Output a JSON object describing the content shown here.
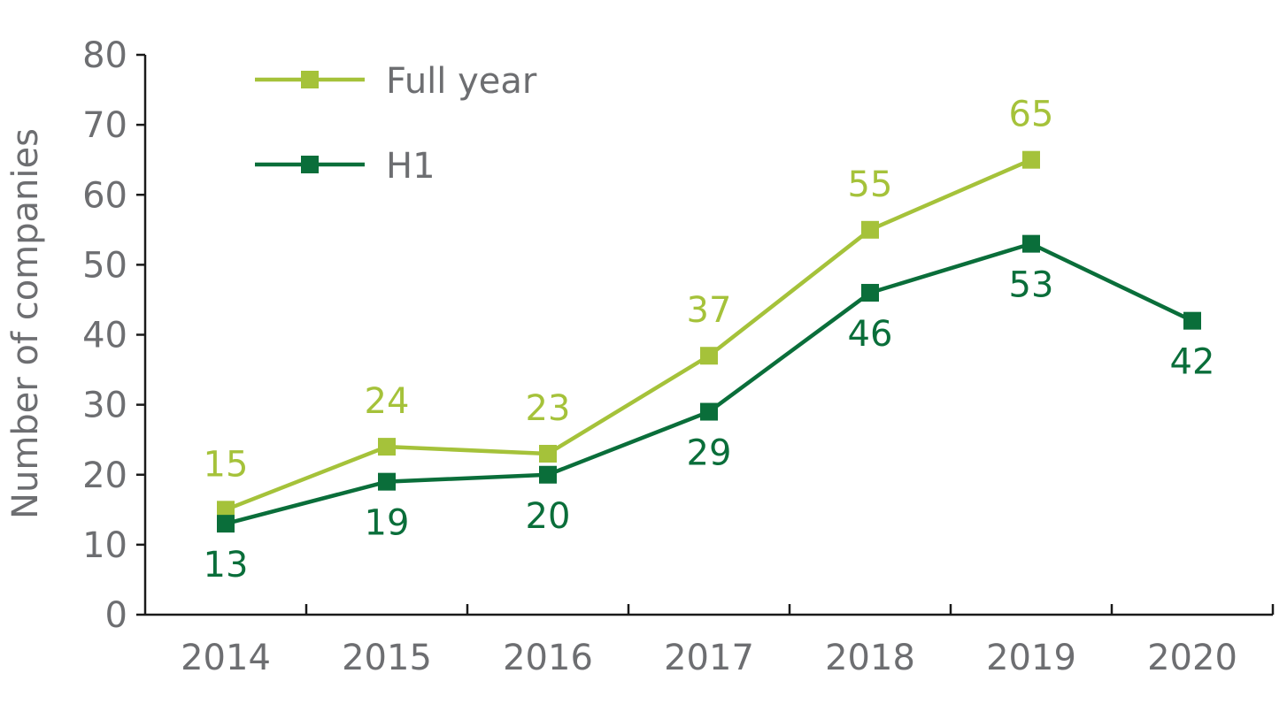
{
  "chart_data": {
    "type": "line",
    "title": "",
    "xlabel": "",
    "ylabel": "Number of companies",
    "categories": [
      "2014",
      "2015",
      "2016",
      "2017",
      "2018",
      "2019",
      "2020"
    ],
    "ylim": [
      0,
      80
    ],
    "yticks": [
      "0",
      "10",
      "20",
      "30",
      "40",
      "50",
      "60",
      "70",
      "80"
    ],
    "grid": false,
    "legend_position": "top-left",
    "series": [
      {
        "name": "Full year",
        "color": "#a5c23a",
        "values": [
          15,
          24,
          23,
          37,
          55,
          65,
          null
        ],
        "label_position": "above"
      },
      {
        "name": "H1",
        "color": "#0a6e3a",
        "values": [
          13,
          19,
          20,
          29,
          46,
          53,
          42
        ],
        "label_position": "below"
      }
    ]
  }
}
